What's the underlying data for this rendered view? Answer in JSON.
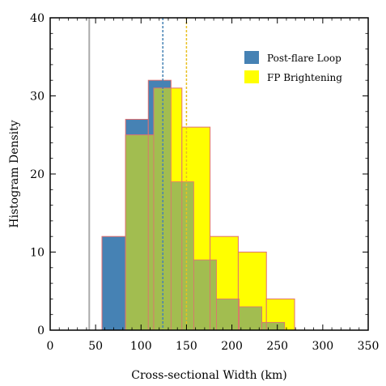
{
  "chart_data": {
    "type": "bar",
    "title": "",
    "xlabel": "Cross-sectional Width (km)",
    "ylabel": "Histogram Density",
    "xlim": [
      0,
      350
    ],
    "ylim": [
      0,
      40
    ],
    "xticks": [
      "0",
      "50",
      "100",
      "150",
      "200",
      "250",
      "300",
      "350"
    ],
    "yticks": [
      "0",
      "10",
      "20",
      "30",
      "40"
    ],
    "legend_position": "top-right",
    "grid": false,
    "series": [
      {
        "name": "Post-flare Loop",
        "color": "#4682B4",
        "bins": [
          {
            "x0": 57,
            "x1": 83,
            "value": 12
          },
          {
            "x0": 83,
            "x1": 108,
            "value": 27
          },
          {
            "x0": 108,
            "x1": 133,
            "value": 32
          },
          {
            "x0": 133,
            "x1": 158,
            "value": 19
          },
          {
            "x0": 158,
            "x1": 183,
            "value": 9
          },
          {
            "x0": 183,
            "x1": 208,
            "value": 4
          },
          {
            "x0": 208,
            "x1": 233,
            "value": 3
          },
          {
            "x0": 233,
            "x1": 258,
            "value": 1
          }
        ]
      },
      {
        "name": "FP Brightening",
        "color": "#FFFF00",
        "bins": [
          {
            "x0": 83,
            "x1": 114,
            "value": 25
          },
          {
            "x0": 114,
            "x1": 145,
            "value": 31
          },
          {
            "x0": 145,
            "x1": 176,
            "value": 26
          },
          {
            "x0": 176,
            "x1": 207,
            "value": 12
          },
          {
            "x0": 207,
            "x1": 238,
            "value": 10
          },
          {
            "x0": 238,
            "x1": 269,
            "value": 4
          }
        ]
      }
    ],
    "overlap_color": "#A2BD50",
    "bar_edge_color": "#E07070",
    "reference_lines": [
      {
        "x": 43,
        "color": "#AAAAAA",
        "style": "solid"
      },
      {
        "x": 124,
        "color": "#4682B4",
        "style": "dashed"
      },
      {
        "x": 150,
        "color": "#E8C020",
        "style": "dashed"
      }
    ]
  }
}
